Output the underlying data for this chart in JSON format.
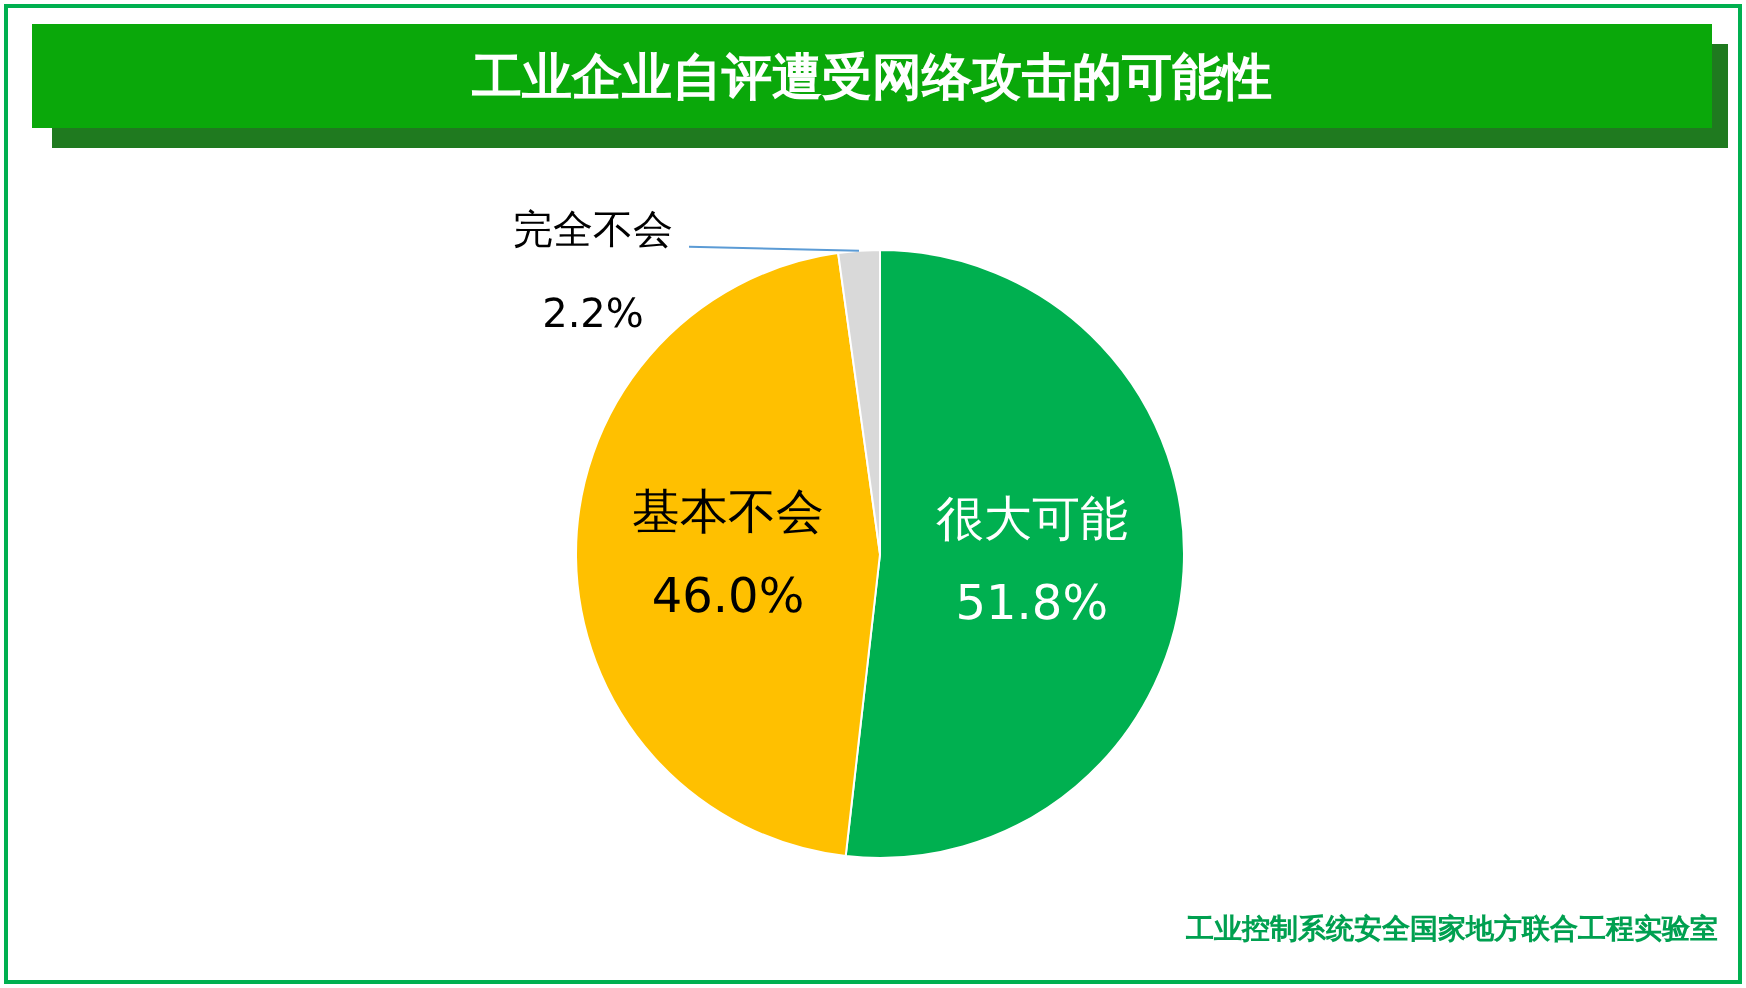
{
  "chart_data": {
    "type": "pie",
    "title": "工业企业自评遭受网络攻击的可能性",
    "categories": [
      "很大可能",
      "基本不会",
      "完全不会"
    ],
    "values": [
      51.8,
      46.0,
      2.2
    ],
    "colors": [
      "#00b050",
      "#ffc000",
      "#d9d9d9"
    ],
    "value_labels": [
      "51.8%",
      "46.0%",
      "2.2%"
    ],
    "annotations": [
      "工业控制系统安全国家地方联合工程实验室"
    ],
    "legend": false
  }
}
